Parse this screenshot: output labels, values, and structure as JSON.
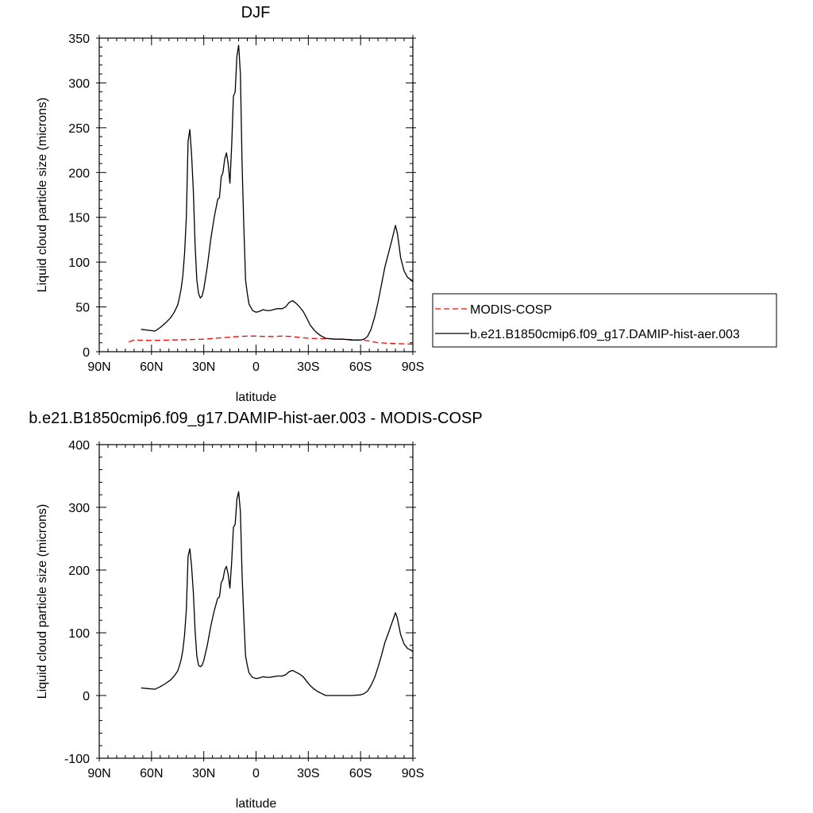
{
  "chart_data": [
    {
      "type": "line",
      "title": "DJF",
      "xlabel": "latitude",
      "ylabel": "Liquid cloud particle size (microns)",
      "xlim": [
        -90,
        90
      ],
      "ylim": [
        0,
        350
      ],
      "x_tick_values": [
        -90,
        -60,
        -30,
        0,
        30,
        60,
        90
      ],
      "x_tick_labels": [
        "90N",
        "60N",
        "30N",
        "0",
        "30S",
        "60S",
        "90S"
      ],
      "y_ticks": [
        0,
        50,
        100,
        150,
        200,
        250,
        300,
        350
      ],
      "grid": false,
      "legend": "right",
      "series": [
        {
          "name": "MODIS-COSP",
          "style": "dashed",
          "color": "#ff0000",
          "x": [
            -73,
            -70,
            -60,
            -50,
            -40,
            -30,
            -20,
            -10,
            -5,
            0,
            5,
            10,
            15,
            20,
            30,
            40,
            50,
            60,
            65,
            70,
            80,
            90
          ],
          "y": [
            11,
            13,
            12.5,
            13,
            13.5,
            14,
            15.5,
            17,
            17.5,
            17.5,
            17,
            17,
            17.5,
            17,
            15,
            14.5,
            14,
            13,
            12,
            10,
            9,
            8.5
          ]
        },
        {
          "name": "b.e21.B1850cmip6.f09_g17.DAMIP-hist-aer.003",
          "style": "solid",
          "color": "#000000",
          "x": [
            -66,
            -62,
            -58,
            -55,
            -52,
            -49,
            -47,
            -45,
            -44,
            -43,
            -42,
            -41,
            -40,
            -39,
            -38,
            -37,
            -36,
            -35,
            -34,
            -33,
            -32,
            -31,
            -30,
            -28,
            -26,
            -24,
            -22,
            -21,
            -20,
            -19,
            -18,
            -17,
            -16,
            -15,
            -14,
            -13,
            -12,
            -11,
            -10,
            -9,
            -8,
            -7,
            -6,
            -5,
            -4,
            -2,
            0,
            2,
            4,
            6,
            8,
            10,
            12,
            15,
            17,
            19,
            21,
            23,
            25,
            27,
            29,
            31,
            33,
            35,
            37,
            40,
            45,
            50,
            55,
            60,
            62,
            64,
            66,
            68,
            70,
            72,
            74,
            76,
            78,
            80,
            81,
            82,
            83,
            85,
            87,
            89,
            90
          ],
          "y": [
            25,
            24,
            23,
            27,
            32,
            38,
            44,
            52,
            60,
            70,
            85,
            110,
            150,
            235,
            248,
            220,
            180,
            120,
            80,
            65,
            60,
            62,
            70,
            95,
            125,
            150,
            170,
            172,
            195,
            200,
            215,
            222,
            210,
            188,
            230,
            285,
            290,
            330,
            342,
            310,
            210,
            140,
            80,
            65,
            53,
            46,
            44,
            45,
            47,
            46,
            46,
            47,
            48,
            48,
            50,
            55,
            57,
            54,
            50,
            45,
            38,
            30,
            25,
            21,
            18,
            15,
            14,
            14,
            13,
            13,
            14,
            17,
            25,
            38,
            55,
            75,
            95,
            110,
            125,
            141,
            133,
            120,
            105,
            90,
            83,
            80,
            78
          ]
        }
      ]
    },
    {
      "type": "line",
      "title": "b.e21.B1850cmip6.f09_g17.DAMIP-hist-aer.003 - MODIS-COSP",
      "xlabel": "latitude",
      "ylabel": "Liquid cloud particle size (microns)",
      "xlim": [
        -90,
        90
      ],
      "ylim": [
        -100,
        400
      ],
      "x_tick_values": [
        -90,
        -60,
        -30,
        0,
        30,
        60,
        90
      ],
      "x_tick_labels": [
        "90N",
        "60N",
        "30N",
        "0",
        "30S",
        "60S",
        "90S"
      ],
      "y_ticks": [
        -100,
        0,
        100,
        200,
        300,
        400
      ],
      "grid": false,
      "legend": "none",
      "series": [
        {
          "style": "solid",
          "color": "#000000",
          "x": [
            -66,
            -62,
            -58,
            -55,
            -52,
            -49,
            -47,
            -45,
            -44,
            -43,
            -42,
            -41,
            -40,
            -39,
            -38,
            -37,
            -36,
            -35,
            -34,
            -33,
            -32,
            -31,
            -30,
            -28,
            -26,
            -24,
            -22,
            -21,
            -20,
            -19,
            -18,
            -17,
            -16,
            -15,
            -14,
            -13,
            -12,
            -11,
            -10,
            -9,
            -8,
            -7,
            -6,
            -5,
            -4,
            -2,
            0,
            2,
            4,
            6,
            8,
            10,
            12,
            15,
            17,
            19,
            21,
            23,
            25,
            27,
            29,
            31,
            33,
            35,
            37,
            40,
            45,
            50,
            55,
            60,
            62,
            64,
            66,
            68,
            70,
            72,
            74,
            76,
            78,
            80,
            81,
            82,
            83,
            85,
            87,
            89,
            90
          ],
          "y": [
            12,
            11,
            10,
            14,
            19,
            25,
            31,
            39,
            47,
            57,
            72,
            97,
            137,
            222,
            234,
            206,
            165,
            104,
            63,
            48,
            46,
            48,
            56,
            80,
            110,
            135,
            155,
            157,
            180,
            185,
            200,
            206,
            193,
            171,
            213,
            268,
            273,
            313,
            325,
            293,
            193,
            123,
            63,
            48,
            36,
            29,
            27,
            28,
            30,
            29,
            29,
            30,
            31,
            31,
            33,
            38,
            40,
            37,
            34,
            30,
            23,
            16,
            11,
            7,
            4,
            0,
            0,
            0,
            0,
            1,
            3,
            7,
            16,
            28,
            45,
            64,
            85,
            100,
            116,
            132,
            124,
            111,
            97,
            82,
            75,
            72,
            70
          ]
        }
      ]
    }
  ]
}
